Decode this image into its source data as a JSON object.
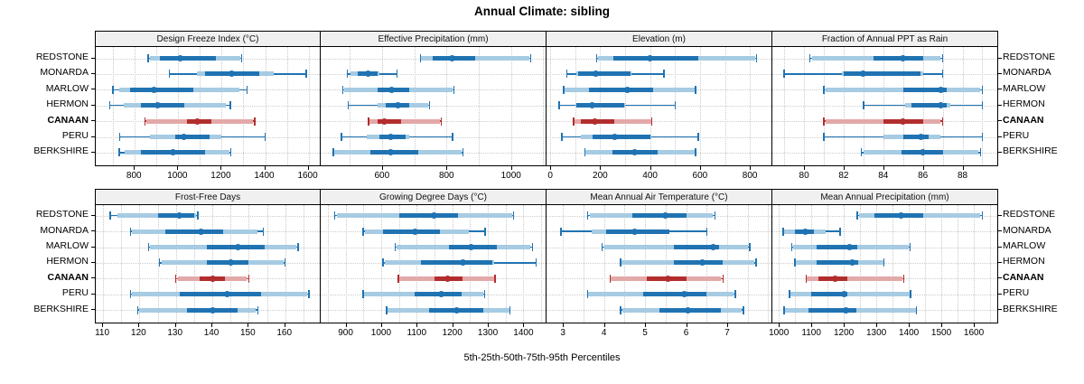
{
  "title": "Annual Climate: sibling",
  "caption": "5th-25th-50th-75th-95th Percentiles",
  "colors": {
    "series_dark": "#2073b2",
    "series_light": "#a6cbe3",
    "highlight_dark": "#b22d2d",
    "highlight_light": "#e3a8a8",
    "grid": "#c9c9c9",
    "header_bg": "#f0f0f0",
    "border": "#000000"
  },
  "chart_data": {
    "type": "trellis-percentile-dotplot",
    "title": "Annual Climate: sibling",
    "caption": "5th-25th-50th-75th-95th Percentiles",
    "legend_position": "none",
    "grid": "dotted-minor",
    "locations": [
      "REDSTONE",
      "MONARDA",
      "MARLOW",
      "HERMON",
      "CANAAN",
      "PERU",
      "BERKSHIRE"
    ],
    "highlighted_location": "CANAAN",
    "percentile_keys": [
      "p5",
      "p10",
      "p25",
      "p50",
      "p75",
      "p90",
      "p95"
    ],
    "panels": [
      {
        "title": "Design Freeze Index (°C)",
        "xlim": [
          620,
          1660
        ],
        "major_ticks": [
          800,
          1000,
          1200,
          1400,
          1600
        ],
        "minor_step": 100,
        "values": {
          "REDSTONE": [
            862,
            870,
            917,
            1007,
            1172,
            1285,
            1292
          ],
          "MONARDA": [
            960,
            1085,
            1125,
            1248,
            1372,
            1441,
            1590
          ],
          "MARLOW": [
            700,
            730,
            778,
            888,
            1070,
            1280,
            1316
          ],
          "HERMON": [
            685,
            750,
            828,
            906,
            1028,
            1221,
            1240
          ],
          "CANAAN": [
            846,
            852,
            1041,
            1087,
            1152,
            1345,
            1352
          ],
          "PERU": [
            731,
            869,
            986,
            1026,
            1145,
            1200,
            1400
          ],
          "BERKSHIRE": [
            728,
            752,
            828,
            977,
            1124,
            1235,
            1241
          ]
        }
      },
      {
        "title": "Effective Precipitation (mm)",
        "xlim": [
          410,
          1110
        ],
        "major_ticks": [
          600,
          800,
          1000
        ],
        "minor_step": 100,
        "values": {
          "REDSTONE": [
            719,
            722,
            758,
            816,
            888,
            1058,
            1061
          ],
          "MONARDA": [
            493,
            502,
            526,
            556,
            586,
            592,
            646
          ],
          "MARLOW": [
            479,
            483,
            586,
            631,
            684,
            819,
            823
          ],
          "HERMON": [
            496,
            586,
            612,
            649,
            684,
            744,
            747
          ],
          "CANAAN": [
            558,
            561,
            586,
            606,
            658,
            781,
            784
          ],
          "PERU": [
            474,
            554,
            591,
            626,
            673,
            685,
            819
          ],
          "BERKSHIRE": [
            449,
            452,
            563,
            628,
            712,
            848,
            851
          ]
        }
      },
      {
        "title": "Elevation (m)",
        "xlim": [
          -15,
          890
        ],
        "major_ticks": [
          0,
          200,
          400,
          600,
          800
        ],
        "minor_step": 100,
        "values": {
          "REDSTONE": [
            186,
            191,
            254,
            401,
            593,
            820,
            827
          ],
          "MONARDA": [
            66,
            104,
            112,
            183,
            320,
            327,
            455
          ],
          "MARLOW": [
            54,
            57,
            156,
            309,
            413,
            580,
            583
          ],
          "HERMON": [
            36,
            100,
            104,
            168,
            297,
            301,
            501
          ],
          "CANAAN": [
            93,
            97,
            123,
            180,
            258,
            405,
            407
          ],
          "PERU": [
            46,
            123,
            168,
            258,
            400,
            405,
            593
          ],
          "BERKSHIRE": [
            138,
            142,
            249,
            339,
            431,
            580,
            583
          ]
        }
      },
      {
        "title": "Fraction of Annual PPT as Rain",
        "xlim": [
          78.4,
          89.8
        ],
        "major_ticks": [
          80,
          82,
          84,
          86,
          88
        ],
        "minor_step": 1,
        "values": {
          "REDSTONE": [
            80.3,
            80.4,
            83.5,
            85.0,
            86.0,
            86.9,
            87.0
          ],
          "MONARDA": [
            79.0,
            81.9,
            82.0,
            83.0,
            85.9,
            86.0,
            87.0
          ],
          "MARLOW": [
            81.0,
            81.1,
            85.0,
            86.9,
            87.2,
            88.9,
            89.0
          ],
          "HERMON": [
            83.0,
            85.1,
            85.4,
            86.9,
            87.2,
            87.4,
            89.0
          ],
          "CANAAN": [
            81.0,
            81.1,
            84.0,
            85.0,
            86.0,
            86.9,
            87.0
          ],
          "PERU": [
            81.0,
            84.0,
            85.0,
            85.9,
            86.3,
            86.9,
            89.0
          ],
          "BERKSHIRE": [
            82.9,
            83.0,
            84.9,
            86.0,
            87.0,
            88.8,
            88.9
          ]
        }
      },
      {
        "title": "Frost-Free Days",
        "xlim": [
          108,
          170
        ],
        "major_ticks": [
          110,
          120,
          130,
          140,
          150,
          160
        ],
        "minor_step": 5,
        "values": {
          "REDSTONE": [
            112,
            114,
            125,
            131,
            135,
            135.5,
            136
          ],
          "MONARDA": [
            117.5,
            118,
            127,
            137,
            143,
            152.5,
            154
          ],
          "MARLOW": [
            122.5,
            123,
            138.5,
            147,
            154.5,
            163,
            163.5
          ],
          "HERMON": [
            125.5,
            126,
            138.5,
            145,
            150,
            159.5,
            160
          ],
          "CANAAN": [
            130,
            130.5,
            136.5,
            140,
            143.5,
            149.5,
            150
          ],
          "PERU": [
            117.5,
            118,
            131,
            144,
            153.5,
            166,
            166.5
          ],
          "BERKSHIRE": [
            119.5,
            120,
            133,
            140,
            147,
            152,
            152.5
          ]
        }
      },
      {
        "title": "Growing Degree Days (°C)",
        "xlim": [
          830,
          1465
        ],
        "major_ticks": [
          900,
          1000,
          1100,
          1200,
          1300,
          1400
        ],
        "minor_step": 50,
        "values": {
          "REDSTONE": [
            870,
            875,
            1052,
            1150,
            1216,
            1368,
            1372
          ],
          "MONARDA": [
            950,
            955,
            1005,
            1096,
            1166,
            1246,
            1292
          ],
          "MARLOW": [
            1039,
            1043,
            1190,
            1254,
            1326,
            1420,
            1426
          ],
          "HERMON": [
            1005,
            1010,
            1111,
            1229,
            1313,
            1318,
            1436
          ],
          "CANAAN": [
            1048,
            1051,
            1151,
            1187,
            1229,
            1318,
            1320
          ],
          "PERU": [
            949,
            952,
            1094,
            1170,
            1227,
            1288,
            1291
          ],
          "BERKSHIRE": [
            1016,
            1019,
            1135,
            1212,
            1287,
            1360,
            1362
          ]
        }
      },
      {
        "title": "Mean Annual Air Temperature (°C)",
        "xlim": [
          2.6,
          8.1
        ],
        "major_ticks": [
          3,
          4,
          5,
          6,
          7
        ],
        "minor_step": 0.5,
        "values": {
          "REDSTONE": [
            3.6,
            3.65,
            4.7,
            5.5,
            6.0,
            6.65,
            6.7
          ],
          "MONARDA": [
            2.95,
            3.7,
            4.05,
            4.75,
            5.6,
            5.6,
            6.5
          ],
          "MARLOW": [
            3.95,
            4.0,
            5.7,
            6.65,
            6.8,
            7.5,
            7.55
          ],
          "HERMON": [
            4.4,
            4.4,
            5.7,
            6.4,
            6.9,
            7.65,
            7.7
          ],
          "CANAAN": [
            4.15,
            4.15,
            5.05,
            5.55,
            6.0,
            6.85,
            6.9
          ],
          "PERU": [
            3.6,
            3.6,
            4.95,
            5.95,
            6.5,
            7.15,
            7.2
          ],
          "BERKSHIRE": [
            4.4,
            4.45,
            5.35,
            6.05,
            6.85,
            7.35,
            7.4
          ]
        }
      },
      {
        "title": "Mean Annual Precipitation (mm)",
        "xlim": [
          980,
          1675
        ],
        "major_ticks": [
          1000,
          1100,
          1200,
          1300,
          1400,
          1500,
          1600
        ],
        "minor_step": 50,
        "values": {
          "REDSTONE": [
            1242,
            1246,
            1295,
            1377,
            1444,
            1620,
            1626
          ],
          "MONARDA": [
            1014,
            1016,
            1049,
            1081,
            1109,
            1145,
            1188
          ],
          "MARLOW": [
            1040,
            1043,
            1117,
            1219,
            1240,
            1400,
            1404
          ],
          "HERMON": [
            1049,
            1052,
            1117,
            1226,
            1244,
            1321,
            1323
          ],
          "CANAAN": [
            1084,
            1086,
            1123,
            1172,
            1212,
            1381,
            1384
          ],
          "PERU": [
            1033,
            1035,
            1100,
            1200,
            1212,
            1402,
            1405
          ],
          "BERKSHIRE": [
            1016,
            1019,
            1091,
            1207,
            1238,
            1421,
            1424
          ]
        }
      }
    ]
  }
}
